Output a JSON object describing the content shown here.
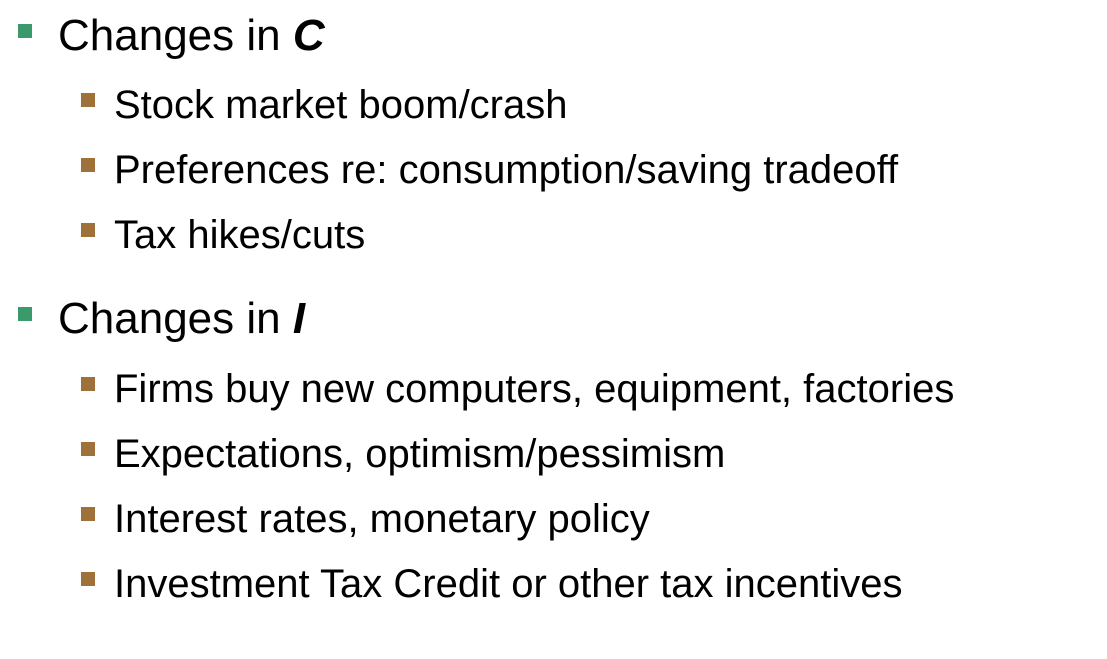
{
  "colors": {
    "level1_bullet": "#3a9a6c",
    "level2_bullet": "#a0703a",
    "text": "#000000",
    "background": "#ffffff"
  },
  "sections": [
    {
      "prefix": "Changes in ",
      "variable": "C",
      "items": [
        "Stock market boom/crash",
        "Preferences re: consumption/saving tradeoff",
        "Tax hikes/cuts"
      ]
    },
    {
      "prefix": "Changes in ",
      "variable": "I",
      "items": [
        "Firms buy new computers, equipment, factories",
        "Expectations, optimism/pessimism",
        "Interest rates, monetary policy",
        "Investment Tax Credit or other tax incentives"
      ]
    }
  ]
}
